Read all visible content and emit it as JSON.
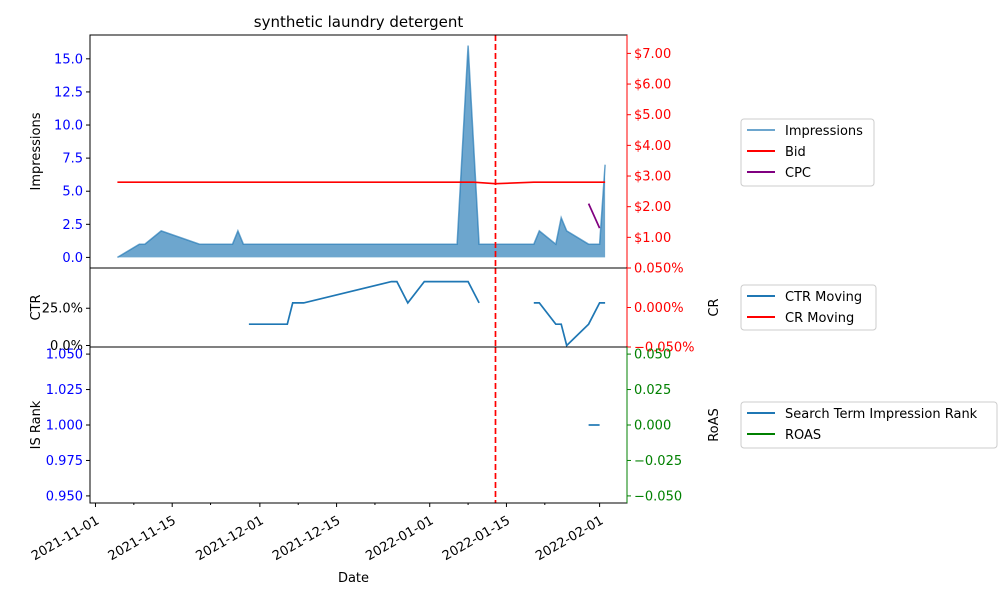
{
  "chart_data": {
    "type": "line",
    "title": "synthetic laundry detergent",
    "xlabel": "Date",
    "x_ticks": [
      "2021-11-01",
      "2021-11-15",
      "2021-12-01",
      "2021-12-15",
      "2022-01-01",
      "2022-01-15",
      "2022-02-01"
    ],
    "x_range": [
      "2021-10-31",
      "2022-02-06"
    ],
    "marker_date": "2022-01-13",
    "colors": {
      "impressions": "#1f77b4",
      "bid": "#ff0000",
      "cpc": "#800080",
      "ctr": "#1f77b4",
      "cr": "#ff0000",
      "rank": "#1f77b4",
      "roas": "#008000",
      "marker": "#ff0000"
    },
    "panels": [
      {
        "left_axis": {
          "label": "Impressions",
          "range": [
            -0.8,
            16.8
          ],
          "ticks": [
            "0.0",
            "2.5",
            "5.0",
            "7.5",
            "10.0",
            "12.5",
            "15.0"
          ],
          "tick_values": [
            0,
            2.5,
            5,
            7.5,
            10,
            12.5,
            15
          ],
          "tick_color": "#0000ff"
        },
        "right_axis": {
          "label": "",
          "range": [
            0,
            7.6
          ],
          "ticks": [
            "$1.00",
            "$2.00",
            "$3.00",
            "$4.00",
            "$5.00",
            "$6.00",
            "$7.00"
          ],
          "tick_values": [
            1,
            2,
            3,
            4,
            5,
            6,
            7
          ],
          "tick_color": "#ff0000"
        },
        "legend": [
          "Impressions",
          "Bid",
          "CPC"
        ],
        "series": [
          {
            "name": "Impressions",
            "kind": "area",
            "axis": "left",
            "color_key": "impressions",
            "points": [
              [
                "2021-11-05",
                0
              ],
              [
                "2021-11-09",
                1
              ],
              [
                "2021-11-10",
                1
              ],
              [
                "2021-11-13",
                2
              ],
              [
                "2021-11-20",
                1
              ],
              [
                "2021-11-26",
                1
              ],
              [
                "2021-11-27",
                2
              ],
              [
                "2021-11-28",
                1
              ],
              [
                "2022-01-04",
                1
              ],
              [
                "2022-01-06",
                1
              ],
              [
                "2022-01-08",
                16
              ],
              [
                "2022-01-10",
                1
              ],
              [
                "2022-01-20",
                1
              ],
              [
                "2022-01-21",
                2
              ],
              [
                "2022-01-24",
                1
              ],
              [
                "2022-01-25",
                3
              ],
              [
                "2022-01-26",
                2
              ],
              [
                "2022-01-30",
                1
              ],
              [
                "2022-02-01",
                1
              ],
              [
                "2022-02-02",
                7
              ]
            ]
          },
          {
            "name": "Bid",
            "kind": "line",
            "axis": "right",
            "color_key": "bid",
            "points": [
              [
                "2021-11-05",
                2.8
              ],
              [
                "2022-01-09",
                2.8
              ],
              [
                "2022-01-13",
                2.75
              ],
              [
                "2022-01-20",
                2.8
              ],
              [
                "2022-02-02",
                2.8
              ]
            ]
          },
          {
            "name": "CPC",
            "kind": "line",
            "axis": "right",
            "color_key": "cpc",
            "points": [
              [
                "2022-01-30",
                2.1
              ],
              [
                "2022-02-01",
                1.3
              ]
            ]
          }
        ]
      },
      {
        "left_axis": {
          "label": "CTR",
          "range": [
            -0.01,
            0.52
          ],
          "ticks": [
            "0.0%",
            "25.0%"
          ],
          "tick_values": [
            0,
            0.25
          ],
          "tick_color": "#000000"
        },
        "right_axis": {
          "label": "CR",
          "range": [
            -0.05,
            0.05
          ],
          "ticks": [
            "−0.050%",
            "0.000%",
            "0.050%"
          ],
          "tick_values": [
            -0.05,
            0,
            0.05
          ],
          "tick_color": "#ff0000"
        },
        "legend": [
          "CTR Moving",
          "CR Moving"
        ],
        "series": [
          {
            "name": "CTR Moving",
            "kind": "line",
            "axis": "left",
            "color_key": "ctr",
            "points": [
              [
                "2021-11-29",
                0.143
              ],
              [
                "2021-12-06",
                0.143
              ],
              [
                "2021-12-07",
                0.286
              ],
              [
                "2021-12-09",
                0.286
              ],
              [
                "2021-12-25",
                0.429
              ],
              [
                "2021-12-26",
                0.429
              ],
              [
                "2021-12-28",
                0.286
              ],
              [
                "2021-12-31",
                0.429
              ],
              [
                "2022-01-08",
                0.429
              ],
              [
                "2022-01-10",
                0.286
              ]
            ]
          },
          {
            "name": "CTR Moving",
            "kind": "line",
            "axis": "left",
            "color_key": "ctr",
            "points": [
              [
                "2022-01-20",
                0.286
              ],
              [
                "2022-01-21",
                0.286
              ],
              [
                "2022-01-24",
                0.143
              ],
              [
                "2022-01-25",
                0.143
              ],
              [
                "2022-01-26",
                0
              ],
              [
                "2022-01-30",
                0.143
              ],
              [
                "2022-02-01",
                0.286
              ],
              [
                "2022-02-02",
                0.286
              ]
            ]
          }
        ]
      },
      {
        "left_axis": {
          "label": "IS Rank",
          "range": [
            0.945,
            1.055
          ],
          "ticks": [
            "0.950",
            "0.975",
            "1.000",
            "1.025",
            "1.050"
          ],
          "tick_values": [
            0.95,
            0.975,
            1.0,
            1.025,
            1.05
          ],
          "tick_color": "#0000ff"
        },
        "right_axis": {
          "label": "RoAS",
          "range": [
            -0.055,
            0.055
          ],
          "ticks": [
            "−0.050",
            "−0.025",
            "0.000",
            "0.025",
            "0.050"
          ],
          "tick_values": [
            -0.05,
            -0.025,
            0,
            0.025,
            0.05
          ],
          "tick_color": "#008000"
        },
        "legend": [
          "Search Term Impression Rank",
          "ROAS"
        ],
        "series": [
          {
            "name": "Search Term Impression Rank",
            "kind": "line",
            "axis": "left",
            "color_key": "rank",
            "points": [
              [
                "2022-01-30",
                1.0
              ],
              [
                "2022-02-01",
                1.0
              ]
            ]
          }
        ]
      }
    ]
  }
}
